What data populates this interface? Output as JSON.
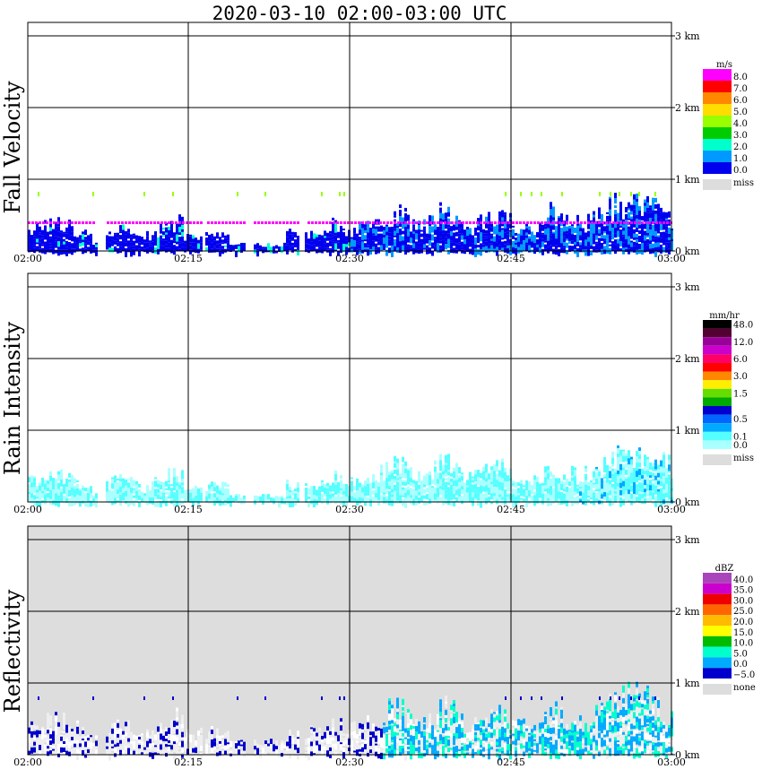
{
  "title": "2020-03-10   02:00-03:00 UTC",
  "x_tick_labels": [
    "02:00",
    "02:15",
    "02:30",
    "02:45",
    "03:00"
  ],
  "height_tick_labels": [
    "0 km",
    "1 km",
    "2 km",
    "3 km"
  ],
  "panels": [
    {
      "label": "Fall Velocity",
      "unit": "m/s",
      "legend": [
        {
          "label": "8.0",
          "color": "#ff00ff"
        },
        {
          "label": "7.0",
          "color": "#ff0000"
        },
        {
          "label": "6.0",
          "color": "#ff8800"
        },
        {
          "label": "5.0",
          "color": "#ffdd00"
        },
        {
          "label": "4.0",
          "color": "#99ff00"
        },
        {
          "label": "3.0",
          "color": "#00cc00"
        },
        {
          "label": "2.0",
          "color": "#00ffcc"
        },
        {
          "label": "1.0",
          "color": "#0099ff"
        },
        {
          "label": "0.0",
          "color": "#0000ee"
        }
      ],
      "missing_label": "miss",
      "missing_color": "#dddddd"
    },
    {
      "label": "Rain Intensity",
      "unit": "mm/hr",
      "legend": [
        {
          "label": "48.0",
          "color": "#000000"
        },
        {
          "label": "",
          "color": "#550033"
        },
        {
          "label": "12.0",
          "color": "#990099"
        },
        {
          "label": "",
          "color": "#cc00cc"
        },
        {
          "label": "6.0",
          "color": "#ff0066"
        },
        {
          "label": "",
          "color": "#ff0000"
        },
        {
          "label": "3.0",
          "color": "#ff8800"
        },
        {
          "label": "",
          "color": "#ffee00"
        },
        {
          "label": "1.5",
          "color": "#66dd00"
        },
        {
          "label": "",
          "color": "#00aa00"
        },
        {
          "label": "",
          "color": "#0000cc"
        },
        {
          "label": "0.5",
          "color": "#0066ff"
        },
        {
          "label": "",
          "color": "#00aaff"
        },
        {
          "label": "0.1",
          "color": "#55ffff"
        },
        {
          "label": "0.0",
          "color": "#aaffff"
        }
      ],
      "missing_label": "miss",
      "missing_color": "#dddddd"
    },
    {
      "label": "Reflectivity",
      "unit": "dBZ",
      "legend": [
        {
          "label": "40.0",
          "color": "#aa44bb"
        },
        {
          "label": "35.0",
          "color": "#cc00cc"
        },
        {
          "label": "30.0",
          "color": "#ee0000"
        },
        {
          "label": "25.0",
          "color": "#ff6600"
        },
        {
          "label": "20.0",
          "color": "#ffbb00"
        },
        {
          "label": "15.0",
          "color": "#ffff00"
        },
        {
          "label": "10.0",
          "color": "#00bb00"
        },
        {
          "label": "5.0",
          "color": "#00ffcc"
        },
        {
          "label": "0.0",
          "color": "#00aaff"
        },
        {
          "label": "−5.0",
          "color": "#0000cc"
        }
      ],
      "missing_label": "none",
      "missing_color": "#dddddd"
    }
  ],
  "chart_data": [
    {
      "type": "heatmap",
      "title": "Fall Velocity",
      "x_range": [
        "02:00",
        "03:00"
      ],
      "y_range_km": [
        0,
        3.2
      ],
      "value_unit": "m/s",
      "echo_tops_km": [
        {
          "time": "02:00",
          "top": 0.45
        },
        {
          "time": "02:05",
          "top": 0.4
        },
        {
          "time": "02:08",
          "top": 0.3
        },
        {
          "time": "02:12",
          "top": 0.45
        },
        {
          "time": "02:15",
          "top": 0.6
        },
        {
          "time": "02:18",
          "top": 0.4
        },
        {
          "time": "02:21",
          "top": 0.15
        },
        {
          "time": "02:25",
          "top": 0.05
        },
        {
          "time": "02:28",
          "top": 0.3
        },
        {
          "time": "02:30",
          "top": 0.5
        },
        {
          "time": "02:35",
          "top": 0.6
        },
        {
          "time": "02:40",
          "top": 0.55
        },
        {
          "time": "02:45",
          "top": 0.4
        },
        {
          "time": "02:50",
          "top": 0.65
        },
        {
          "time": "02:55",
          "top": 0.8
        },
        {
          "time": "03:00",
          "top": 0.5
        }
      ],
      "dominant_value": "0.0–2.0",
      "magenta_layer_km": 0.4
    },
    {
      "type": "heatmap",
      "title": "Rain Intensity",
      "x_range": [
        "02:00",
        "03:00"
      ],
      "y_range_km": [
        0,
        3.2
      ],
      "value_unit": "mm/hr",
      "dominant_value": "0.0–0.1",
      "max_value_shown": "0.5"
    },
    {
      "type": "heatmap",
      "title": "Reflectivity",
      "x_range": [
        "02:00",
        "03:00"
      ],
      "y_range_km": [
        0,
        3.2
      ],
      "value_unit": "dBZ",
      "dominant_value": "−5.0–10.0",
      "max_value_shown": "15.0"
    }
  ]
}
